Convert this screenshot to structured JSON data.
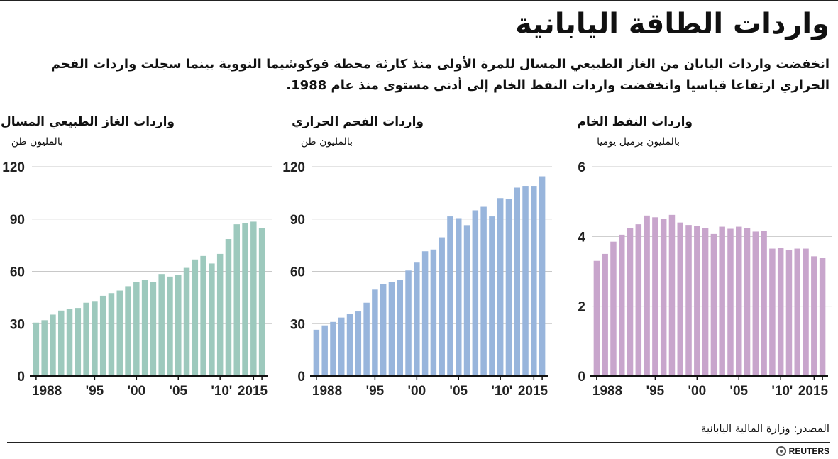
{
  "title": "واردات الطاقة اليابانية",
  "subtitle": "انخفضت واردات اليابان من الغاز الطبيعي المسال للمرة الأولى منذ كارثة محطة فوكوشيما النووية بينما سجلت واردات الفحم الحراري ارتفاعا قياسيا وانخفضت واردات النفط الخام إلى أدنى مستوى منذ عام 1988.",
  "source": "المصدر: وزارة المالية اليابانية",
  "brand": "REUTERS",
  "chart_data": [
    {
      "type": "bar",
      "title": "واردات الغاز الطبيعي المسال",
      "unit": "بالمليون طن",
      "color": "#9dc9bd",
      "ylim": [
        0,
        120
      ],
      "yticks": [
        0,
        30,
        60,
        90,
        120
      ],
      "years": [
        1988,
        1989,
        1990,
        1991,
        1992,
        1993,
        1994,
        1995,
        1996,
        1997,
        1998,
        1999,
        2000,
        2001,
        2002,
        2003,
        2004,
        2005,
        2006,
        2007,
        2008,
        2009,
        2010,
        2011,
        2012,
        2013,
        2014,
        2015
      ],
      "xtick_years": [
        1988,
        1995,
        2000,
        2005,
        2010,
        2014,
        2015
      ],
      "xtick_labels": [
        "1988",
        "'95",
        "'00",
        "'05",
        "'10",
        "'",
        "2015"
      ],
      "values": [
        30.6,
        32.0,
        35.2,
        37.5,
        38.6,
        39.0,
        42.0,
        43.0,
        46.0,
        47.5,
        49.0,
        51.5,
        53.7,
        55.0,
        54.0,
        58.5,
        57.0,
        58.0,
        62.0,
        66.8,
        68.8,
        64.5,
        70.0,
        78.5,
        87.0,
        87.5,
        88.5,
        85.0
      ]
    },
    {
      "type": "bar",
      "title": "واردات الفحم الحراري",
      "unit": "بالمليون طن",
      "color": "#98b5dc",
      "ylim": [
        0,
        120
      ],
      "yticks": [
        0,
        30,
        60,
        90,
        120
      ],
      "years": [
        1988,
        1989,
        1990,
        1991,
        1992,
        1993,
        1994,
        1995,
        1996,
        1997,
        1998,
        1999,
        2000,
        2001,
        2002,
        2003,
        2004,
        2005,
        2006,
        2007,
        2008,
        2009,
        2010,
        2011,
        2012,
        2013,
        2014,
        2015
      ],
      "xtick_years": [
        1988,
        1995,
        2000,
        2005,
        2010,
        2014,
        2015
      ],
      "xtick_labels": [
        "1988",
        "'95",
        "'00",
        "'05",
        "'10",
        "'",
        "2015"
      ],
      "values": [
        26.5,
        29.0,
        31.0,
        33.5,
        35.5,
        37.0,
        42.0,
        49.5,
        52.5,
        54.0,
        55.0,
        60.5,
        65.0,
        71.5,
        72.5,
        79.5,
        91.5,
        90.5,
        86.5,
        95.0,
        97.0,
        91.5,
        102.0,
        101.5,
        108.0,
        109.0,
        109.0,
        114.5
      ]
    },
    {
      "type": "bar",
      "title": "واردات النفط الخام",
      "unit": "بالمليون برميل يوميا",
      "color": "#c8a5cc",
      "ylim": [
        0,
        6
      ],
      "yticks": [
        0,
        2,
        4,
        6
      ],
      "years": [
        1988,
        1989,
        1990,
        1991,
        1992,
        1993,
        1994,
        1995,
        1996,
        1997,
        1998,
        1999,
        2000,
        2001,
        2002,
        2003,
        2004,
        2005,
        2006,
        2007,
        2008,
        2009,
        2010,
        2011,
        2012,
        2013,
        2014,
        2015
      ],
      "xtick_years": [
        1988,
        1995,
        2000,
        2005,
        2010,
        2014,
        2015
      ],
      "xtick_labels": [
        "1988",
        "'95",
        "'00",
        "'05",
        "'10",
        "'",
        "2015"
      ],
      "values": [
        3.3,
        3.5,
        3.85,
        4.05,
        4.25,
        4.35,
        4.6,
        4.55,
        4.5,
        4.62,
        4.4,
        4.33,
        4.3,
        4.24,
        4.07,
        4.28,
        4.22,
        4.28,
        4.24,
        4.14,
        4.15,
        3.65,
        3.68,
        3.6,
        3.65,
        3.65,
        3.43,
        3.38
      ]
    }
  ]
}
